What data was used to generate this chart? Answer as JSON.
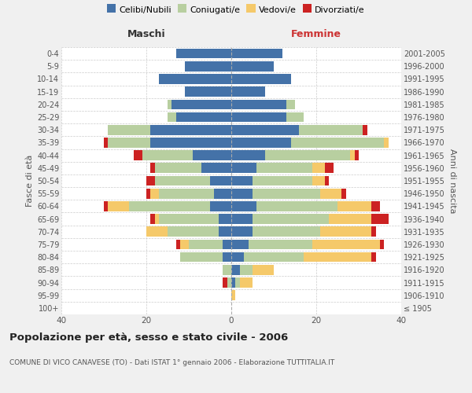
{
  "age_groups": [
    "100+",
    "95-99",
    "90-94",
    "85-89",
    "80-84",
    "75-79",
    "70-74",
    "65-69",
    "60-64",
    "55-59",
    "50-54",
    "45-49",
    "40-44",
    "35-39",
    "30-34",
    "25-29",
    "20-24",
    "15-19",
    "10-14",
    "5-9",
    "0-4"
  ],
  "birth_years": [
    "≤ 1905",
    "1906-1910",
    "1911-1915",
    "1916-1920",
    "1921-1925",
    "1926-1930",
    "1931-1935",
    "1936-1940",
    "1941-1945",
    "1946-1950",
    "1951-1955",
    "1956-1960",
    "1961-1965",
    "1966-1970",
    "1971-1975",
    "1976-1980",
    "1981-1985",
    "1986-1990",
    "1991-1995",
    "1996-2000",
    "2001-2005"
  ],
  "colors": {
    "celibi": "#4472a8",
    "coniugati": "#b8cfa0",
    "vedovi": "#f5c96a",
    "divorziati": "#cc2222"
  },
  "maschi": {
    "celibi": [
      0,
      0,
      0,
      0,
      2,
      2,
      3,
      3,
      5,
      4,
      5,
      7,
      9,
      19,
      19,
      13,
      14,
      11,
      17,
      11,
      13
    ],
    "coniugati": [
      0,
      0,
      1,
      2,
      10,
      8,
      12,
      14,
      19,
      13,
      13,
      11,
      12,
      10,
      10,
      2,
      1,
      0,
      0,
      0,
      0
    ],
    "vedovi": [
      0,
      0,
      0,
      0,
      0,
      2,
      5,
      1,
      5,
      2,
      0,
      0,
      0,
      0,
      0,
      0,
      0,
      0,
      0,
      0,
      0
    ],
    "divorziati": [
      0,
      0,
      1,
      0,
      0,
      1,
      0,
      1,
      1,
      1,
      2,
      1,
      2,
      1,
      0,
      0,
      0,
      0,
      0,
      0,
      0
    ]
  },
  "femmine": {
    "celibi": [
      0,
      0,
      1,
      2,
      3,
      4,
      5,
      5,
      6,
      5,
      5,
      6,
      8,
      14,
      16,
      13,
      13,
      8,
      14,
      10,
      12
    ],
    "coniugati": [
      0,
      0,
      1,
      3,
      14,
      15,
      16,
      18,
      19,
      16,
      14,
      13,
      20,
      22,
      15,
      4,
      2,
      0,
      0,
      0,
      0
    ],
    "vedovi": [
      0,
      1,
      3,
      5,
      16,
      16,
      12,
      10,
      8,
      5,
      3,
      3,
      1,
      1,
      0,
      0,
      0,
      0,
      0,
      0,
      0
    ],
    "divorziati": [
      0,
      0,
      0,
      0,
      1,
      1,
      1,
      4,
      2,
      1,
      1,
      2,
      1,
      0,
      1,
      0,
      0,
      0,
      0,
      0,
      0
    ]
  },
  "xlim": 40,
  "title": "Popolazione per età, sesso e stato civile - 2006",
  "subtitle": "COMUNE DI VICO CANAVESE (TO) - Dati ISTAT 1° gennaio 2006 - Elaborazione TUTTITALIA.IT",
  "ylabel_left": "Fasce di età",
  "ylabel_right": "Anni di nascita",
  "xlabel_left": "Maschi",
  "xlabel_right": "Femmine",
  "bg_color": "#f0f0f0",
  "plot_bg": "#ffffff",
  "legend_labels": [
    "Celibi/Nubili",
    "Coniugati/e",
    "Vedovi/e",
    "Divorziati/e"
  ]
}
